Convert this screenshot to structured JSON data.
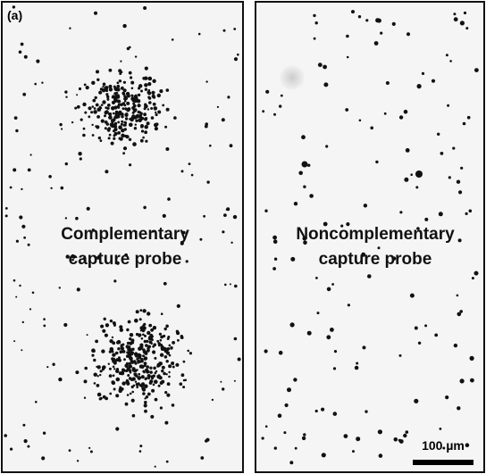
{
  "panel_label": "(a)",
  "left_panel": {
    "label_lines": [
      "Complementary",
      "capture probe"
    ]
  },
  "right_panel": {
    "label_lines": [
      "Noncomplementary",
      "capture probe"
    ],
    "scale_bar_label": "100 µm"
  }
}
